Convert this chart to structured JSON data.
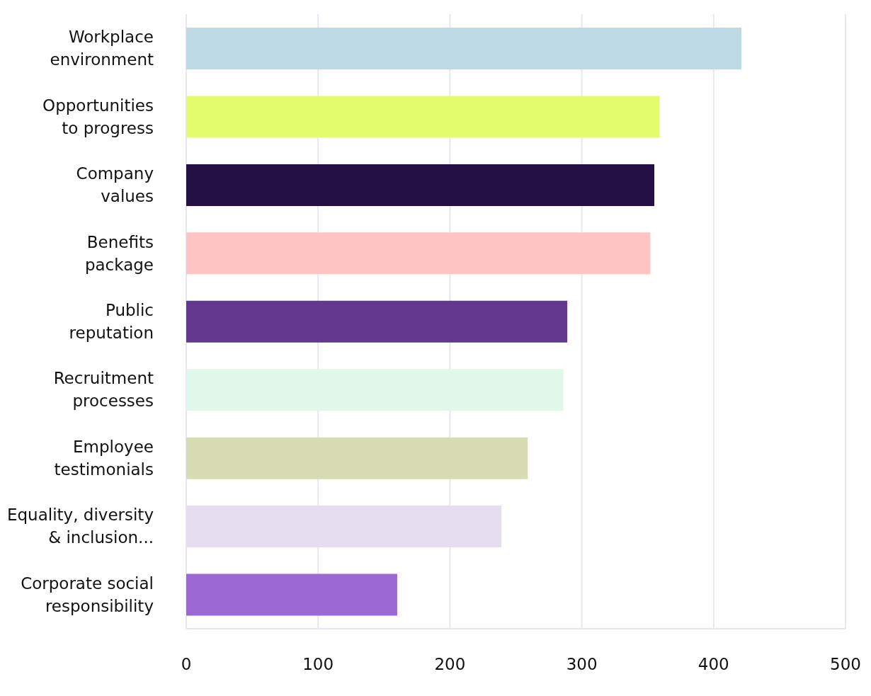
{
  "chart_data": {
    "type": "bar",
    "orientation": "horizontal",
    "categories": [
      "Workplace environment",
      "Opportunities to progress",
      "Company values",
      "Benefits package",
      "Public reputation",
      "Recruitment processes",
      "Employee testimonials",
      "Equality, diversity & inclusion...",
      "Corporate social responsibility"
    ],
    "values": [
      421,
      359,
      355,
      352,
      289,
      286,
      259,
      239,
      160
    ],
    "colors": [
      "#bcd9e4",
      "#e4fd6f",
      "#241044",
      "#ffc4c4",
      "#653890",
      "#dff8ea",
      "#d7dcb3",
      "#e6def0",
      "#9b68d4"
    ],
    "xlim": [
      0,
      500
    ],
    "xticks": [
      0,
      100,
      200,
      300,
      400,
      500
    ],
    "grid": "x",
    "legend": false
  }
}
